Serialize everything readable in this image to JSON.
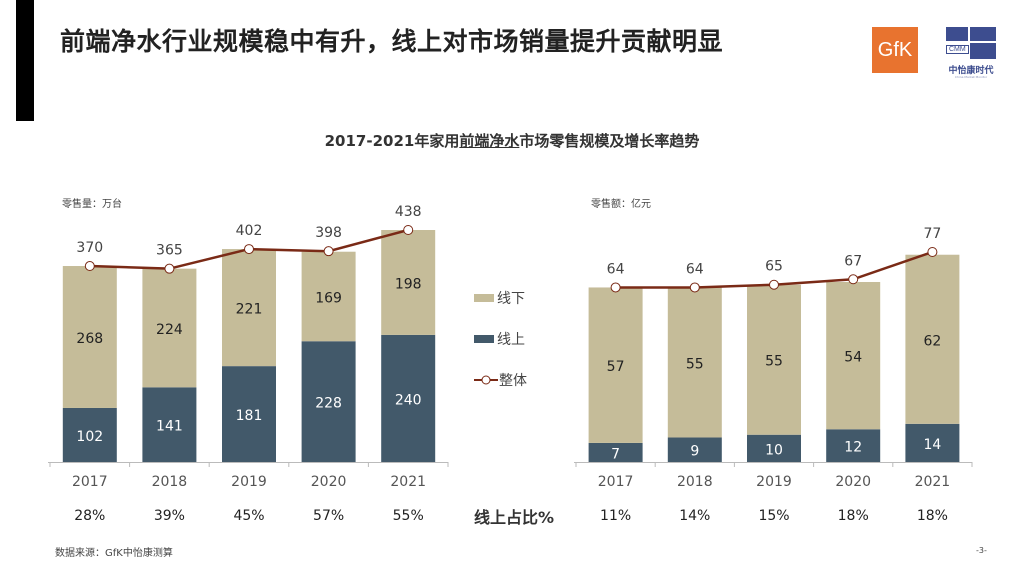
{
  "header": {
    "title": "前端净水行业规模稳中有升，线上对市场销量提升贡献明显",
    "logos": {
      "gfk": "GfK",
      "cmm": "CMM",
      "cmm_name": "中怡康时代",
      "cmm_sub": "China Market Monitor"
    }
  },
  "chart_title": {
    "prefix": "2017-2021年家用",
    "underlined": "前端净水",
    "suffix": "市场零售规模及增长率趋势"
  },
  "legend": {
    "offline": "线下",
    "online": "线上",
    "total": "整体"
  },
  "share_row_label": "线上占比%",
  "source": "数据来源：GfK中怡康测算",
  "page_number": "-3-",
  "colors": {
    "offline": "#c5bc99",
    "online": "#42596a",
    "line": "#7a2a16",
    "axis": "#bbbbbb"
  },
  "chart_data": [
    {
      "type": "bar",
      "stacked": true,
      "title": "零售量：万台",
      "unit_label": "零售量：万台",
      "categories": [
        "2017",
        "2018",
        "2019",
        "2020",
        "2021"
      ],
      "series": [
        {
          "name": "线上",
          "values": [
            102,
            141,
            181,
            228,
            240
          ]
        },
        {
          "name": "线下",
          "values": [
            268,
            224,
            221,
            169,
            198
          ]
        },
        {
          "name": "整体",
          "type": "line",
          "values": [
            370,
            365,
            402,
            398,
            438
          ]
        }
      ],
      "labels": {
        "online": [
          "102",
          "141",
          "181",
          "228",
          "240"
        ],
        "offline": [
          "268",
          "224",
          "221",
          "169",
          "198"
        ],
        "total": [
          "370",
          "365",
          "402",
          "398",
          "438"
        ]
      },
      "online_share": [
        "28%",
        "39%",
        "45%",
        "57%",
        "55%"
      ],
      "ylim": [
        0,
        450
      ]
    },
    {
      "type": "bar",
      "stacked": true,
      "title": "零售额：亿元",
      "unit_label": "零售额：亿元",
      "categories": [
        "2017",
        "2018",
        "2019",
        "2020",
        "2021"
      ],
      "series": [
        {
          "name": "线上",
          "values": [
            7,
            9,
            10,
            12,
            14
          ]
        },
        {
          "name": "线下",
          "values": [
            57,
            55,
            55,
            54,
            62
          ]
        },
        {
          "name": "整体",
          "type": "line",
          "values": [
            64,
            64,
            65,
            67,
            77
          ]
        }
      ],
      "labels": {
        "online": [
          "7",
          "9",
          "10",
          "12",
          "14"
        ],
        "offline": [
          "57",
          "55",
          "55",
          "54",
          "62"
        ],
        "total": [
          "64",
          "64",
          "65",
          "67",
          "77"
        ]
      },
      "online_share": [
        "11%",
        "14%",
        "15%",
        "18%",
        "18%"
      ],
      "ylim": [
        0,
        79
      ]
    }
  ]
}
